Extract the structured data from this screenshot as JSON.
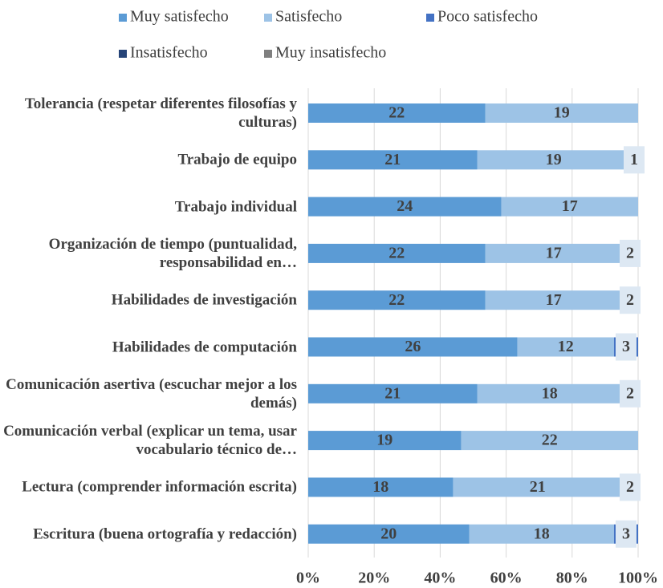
{
  "chart_data": {
    "type": "stacked-bar-percent",
    "categories": [
      "Tolerancia (respetar diferentes filosofías y culturas)",
      "Trabajo de equipo",
      "Trabajo individual",
      "Organización de tiempo (puntualidad, responsabilidad en…",
      "Habilidades de investigación",
      "Habilidades de computación",
      "Comunicación asertiva (escuchar mejor a los demás)",
      "Comunicación verbal (explicar un tema, usar vocabulario técnico de…",
      "Lectura (comprender información escrita)",
      "Escritura (buena ortografía y redacción)"
    ],
    "series": [
      {
        "name": "Muy satisfecho",
        "color": "#5b9bd5",
        "values": [
          22,
          21,
          24,
          22,
          22,
          26,
          21,
          19,
          18,
          20
        ]
      },
      {
        "name": "Satisfecho",
        "color": "#9dc3e6",
        "values": [
          19,
          19,
          17,
          17,
          17,
          12,
          18,
          22,
          21,
          18
        ]
      },
      {
        "name": "Poco satisfecho",
        "color": "#4472c4",
        "values": [
          0,
          1,
          0,
          2,
          2,
          3,
          2,
          0,
          2,
          3
        ]
      },
      {
        "name": "Insatisfecho",
        "color": "#264478",
        "values": [
          0,
          0,
          0,
          0,
          0,
          0,
          0,
          0,
          0,
          0
        ]
      },
      {
        "name": "Muy insatisfecho",
        "color": "#7f7f7f",
        "values": [
          0,
          0,
          0,
          0,
          0,
          0,
          0,
          0,
          0,
          0
        ]
      }
    ],
    "xlim": [
      0,
      100
    ],
    "xticks": [
      {
        "value": 0,
        "label": "0%"
      },
      {
        "value": 20,
        "label": "20%"
      },
      {
        "value": 40,
        "label": "40%"
      },
      {
        "value": 60,
        "label": "60%"
      },
      {
        "value": 80,
        "label": "80%"
      },
      {
        "value": 100,
        "label": "100%"
      }
    ],
    "grid": true,
    "legend": "top"
  }
}
